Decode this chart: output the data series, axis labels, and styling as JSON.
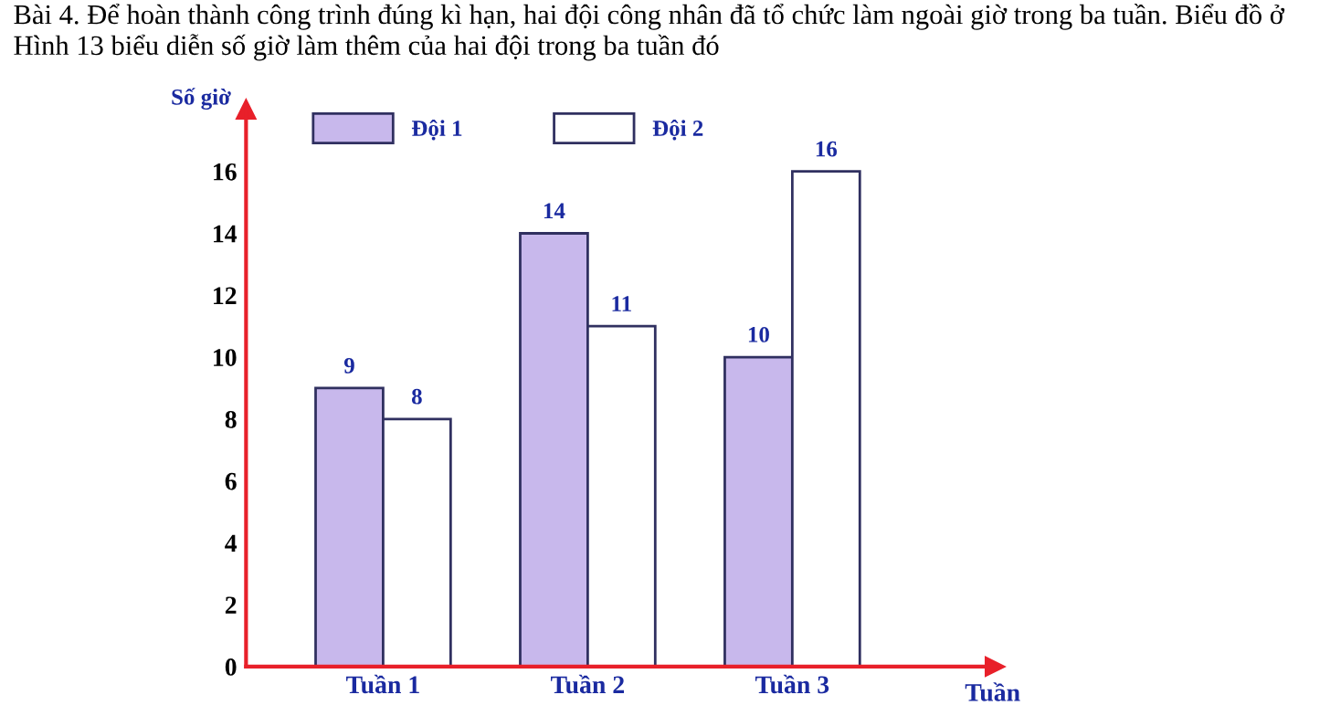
{
  "chart_data": {
    "type": "bar",
    "title": "Bài 4. Để hoàn thành công trình đúng kì hạn, hai đội công nhân đã tổ chức làm ngoài giờ trong ba tuần. Biểu đồ ở Hình 13 biểu diễn số giờ làm thêm của hai đội trong ba tuần đó",
    "xlabel": "Tuần",
    "ylabel": "Số giờ",
    "categories": [
      "Tuần 1",
      "Tuần 2",
      "Tuần 3"
    ],
    "series": [
      {
        "name": "Đội 1",
        "color": "#c8b8ec",
        "values": [
          9,
          14,
          10
        ]
      },
      {
        "name": "Đội 2",
        "color": "#ffffff",
        "values": [
          8,
          11,
          16
        ]
      }
    ],
    "ylim": [
      0,
      18
    ],
    "yticks": [
      0,
      2,
      4,
      6,
      8,
      10,
      12,
      14,
      16
    ],
    "grid": false,
    "legend": "top",
    "data_labels": true
  }
}
